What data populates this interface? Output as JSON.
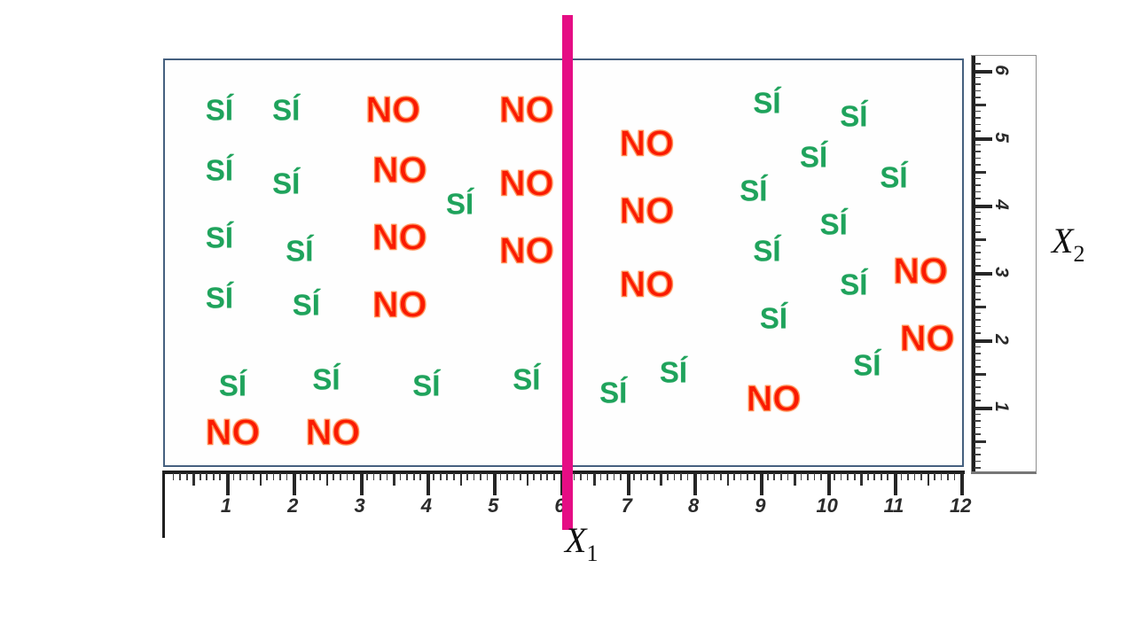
{
  "chart_data": {
    "type": "scatter",
    "title": "",
    "xlabel": {
      "base": "X",
      "sub": "1"
    },
    "ylabel": {
      "base": "X",
      "sub": "2"
    },
    "x_axis": {
      "ticks": [
        "1",
        "2",
        "3",
        "4",
        "5",
        "6",
        "7",
        "8",
        "9",
        "10",
        "11",
        "12"
      ],
      "range": [
        0,
        12.1
      ],
      "style": "ruler",
      "minor_per_unit": 10
    },
    "y_axis": {
      "ticks": [
        "1",
        "2",
        "3",
        "4",
        "5",
        "6"
      ],
      "range": [
        0,
        6.2
      ],
      "style": "ruler",
      "minor_per_unit": 10
    },
    "decision_boundary": {
      "axis": "X1",
      "value": 6,
      "color": "#e50d84"
    },
    "classes": {
      "positive": {
        "label": "SÍ",
        "color": "#1fa35c"
      },
      "negative": {
        "label": "NO",
        "color": "#fa1a02"
      }
    },
    "points": [
      {
        "x": 0.9,
        "y": 5.4,
        "label": "SÍ"
      },
      {
        "x": 1.9,
        "y": 5.4,
        "label": "SÍ"
      },
      {
        "x": 0.9,
        "y": 4.5,
        "label": "SÍ"
      },
      {
        "x": 1.9,
        "y": 4.3,
        "label": "SÍ"
      },
      {
        "x": 0.9,
        "y": 3.5,
        "label": "SÍ"
      },
      {
        "x": 2.1,
        "y": 3.3,
        "label": "SÍ"
      },
      {
        "x": 0.9,
        "y": 2.6,
        "label": "SÍ"
      },
      {
        "x": 2.2,
        "y": 2.5,
        "label": "SÍ"
      },
      {
        "x": 4.5,
        "y": 4.0,
        "label": "SÍ"
      },
      {
        "x": 1.1,
        "y": 1.3,
        "label": "SÍ"
      },
      {
        "x": 2.5,
        "y": 1.4,
        "label": "SÍ"
      },
      {
        "x": 4.0,
        "y": 1.3,
        "label": "SÍ"
      },
      {
        "x": 5.5,
        "y": 1.4,
        "label": "SÍ"
      },
      {
        "x": 6.8,
        "y": 1.2,
        "label": "SÍ"
      },
      {
        "x": 7.7,
        "y": 1.5,
        "label": "SÍ"
      },
      {
        "x": 9.1,
        "y": 5.5,
        "label": "SÍ"
      },
      {
        "x": 10.4,
        "y": 5.3,
        "label": "SÍ"
      },
      {
        "x": 9.8,
        "y": 4.7,
        "label": "SÍ"
      },
      {
        "x": 8.9,
        "y": 4.2,
        "label": "SÍ"
      },
      {
        "x": 11.0,
        "y": 4.4,
        "label": "SÍ"
      },
      {
        "x": 10.1,
        "y": 3.7,
        "label": "SÍ"
      },
      {
        "x": 9.1,
        "y": 3.3,
        "label": "SÍ"
      },
      {
        "x": 10.4,
        "y": 2.8,
        "label": "SÍ"
      },
      {
        "x": 9.2,
        "y": 2.3,
        "label": "SÍ"
      },
      {
        "x": 10.6,
        "y": 1.6,
        "label": "SÍ"
      },
      {
        "x": 3.5,
        "y": 5.4,
        "label": "NO"
      },
      {
        "x": 5.5,
        "y": 5.4,
        "label": "NO"
      },
      {
        "x": 3.6,
        "y": 4.5,
        "label": "NO"
      },
      {
        "x": 5.5,
        "y": 4.3,
        "label": "NO"
      },
      {
        "x": 3.6,
        "y": 3.5,
        "label": "NO"
      },
      {
        "x": 5.5,
        "y": 3.3,
        "label": "NO"
      },
      {
        "x": 3.6,
        "y": 2.5,
        "label": "NO"
      },
      {
        "x": 1.1,
        "y": 0.6,
        "label": "NO"
      },
      {
        "x": 2.6,
        "y": 0.6,
        "label": "NO"
      },
      {
        "x": 7.3,
        "y": 4.9,
        "label": "NO"
      },
      {
        "x": 7.3,
        "y": 3.9,
        "label": "NO"
      },
      {
        "x": 7.3,
        "y": 2.8,
        "label": "NO"
      },
      {
        "x": 9.2,
        "y": 1.1,
        "label": "NO"
      },
      {
        "x": 11.4,
        "y": 3.0,
        "label": "NO"
      },
      {
        "x": 11.5,
        "y": 2.0,
        "label": "NO"
      }
    ],
    "layout": {
      "grid": false,
      "legend": "none",
      "frame_color": "#45607f"
    }
  }
}
